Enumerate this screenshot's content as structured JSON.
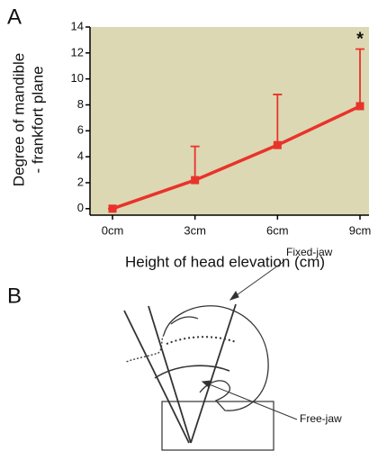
{
  "chart_data": {
    "type": "line",
    "title": "A",
    "ylabel": [
      "Degree of mandible",
      "- frankfort plane"
    ],
    "xlabel": "Height of head elevation (cm)",
    "categories": [
      "0cm",
      "3cm",
      "6cm",
      "9cm"
    ],
    "series": [
      {
        "color": "#e8332b",
        "values": [
          0,
          2.2,
          4.9,
          7.9
        ],
        "errors": [
          0,
          2.6,
          3.9,
          4.4
        ]
      }
    ],
    "annotations": [
      {
        "text": "*",
        "category": 3,
        "value": 13
      }
    ],
    "ylim": [
      -0.5,
      14
    ],
    "yticks": [
      0,
      2,
      4,
      6,
      8,
      10,
      12,
      14
    ],
    "background": "#dcd8b3"
  },
  "diagram": {
    "title": "B",
    "labels": [
      "Fixed-jaw",
      "Free-jaw"
    ]
  }
}
